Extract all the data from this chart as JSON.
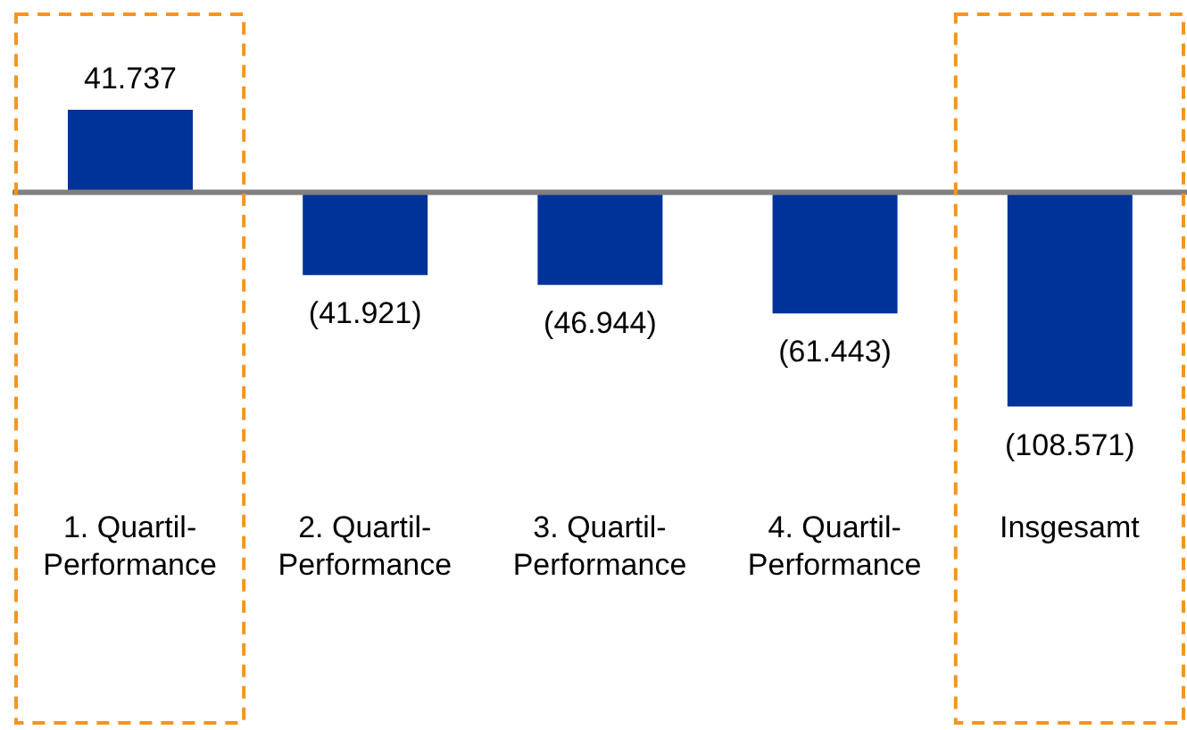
{
  "chart_data": {
    "type": "bar",
    "categories": [
      "1. Quartil-Performance",
      "2. Quartil-Performance",
      "3. Quartil-Performance",
      "4. Quartil-Performance",
      "Insgesamt"
    ],
    "values": [
      41737,
      -41921,
      -46944,
      -61443,
      -108571
    ],
    "value_labels": [
      "41.737",
      "(41.921)",
      "(46.944)",
      "(61.443)",
      "(108.571)"
    ],
    "color": "#003399"
  }
}
